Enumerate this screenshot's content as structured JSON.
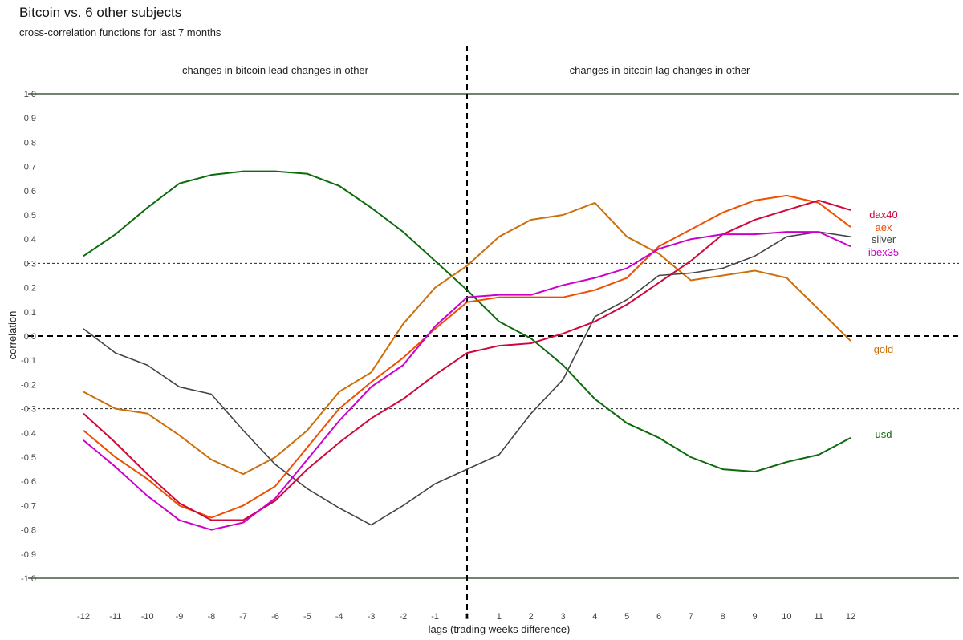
{
  "chart_data": {
    "type": "line",
    "title": "Bitcoin vs. 6 other subjects",
    "subtitle": "cross-correlation functions for last 7 months",
    "xlabel": "lags (trading weeks difference)",
    "ylabel": "correlation",
    "xlim": [
      -12,
      12
    ],
    "ylim": [
      -1.0,
      1.0
    ],
    "x": [
      -12,
      -11,
      -10,
      -9,
      -8,
      -7,
      -6,
      -5,
      -4,
      -3,
      -2,
      -1,
      0,
      1,
      2,
      3,
      4,
      5,
      6,
      7,
      8,
      9,
      10,
      11,
      12
    ],
    "x_ticks": [
      "-12",
      "-11",
      "-10",
      "-9",
      "-8",
      "-7",
      "-6",
      "-5",
      "-4",
      "-3",
      "-2",
      "-1",
      "0",
      "1",
      "2",
      "3",
      "4",
      "5",
      "6",
      "7",
      "8",
      "9",
      "10",
      "11",
      "12"
    ],
    "y_ticks": [
      "1.0",
      "0.9",
      "0.8",
      "0.7",
      "0.6",
      "0.5",
      "0.4",
      "0.3",
      "0.2",
      "0.1",
      "0.0",
      "-0.1",
      "-0.2",
      "-0.3",
      "-0.4",
      "-0.5",
      "-0.6",
      "-0.7",
      "-0.8",
      "-0.9",
      "-1.0"
    ],
    "grid": false,
    "reference_lines": [
      {
        "y": 1.0,
        "style": "solid"
      },
      {
        "y": -1.0,
        "style": "solid"
      },
      {
        "y": 0.3,
        "style": "dotted"
      },
      {
        "y": -0.3,
        "style": "dotted"
      },
      {
        "y": 0.0,
        "style": "dashed"
      },
      {
        "x": 0,
        "style": "dashed"
      }
    ],
    "annotations": [
      {
        "text": "changes in bitcoin lead changes in other",
        "side": "left"
      },
      {
        "text": "changes in bitcoin lag changes in other",
        "side": "right"
      }
    ],
    "legend": "direct labels at right end of lines",
    "series": [
      {
        "name": "usd",
        "color": "#0d6a0d",
        "values": [
          0.33,
          0.42,
          0.53,
          0.63,
          0.665,
          0.68,
          0.68,
          0.67,
          0.62,
          0.53,
          0.43,
          0.31,
          0.19,
          0.06,
          -0.01,
          -0.12,
          -0.26,
          -0.36,
          -0.42,
          -0.5,
          -0.55,
          -0.56,
          -0.52,
          -0.49,
          -0.42
        ]
      },
      {
        "name": "gold",
        "color": "#cc6f0a",
        "values": [
          -0.23,
          -0.3,
          -0.32,
          -0.41,
          -0.51,
          -0.57,
          -0.5,
          -0.39,
          -0.23,
          -0.15,
          0.05,
          0.2,
          0.29,
          0.41,
          0.48,
          0.5,
          0.55,
          0.41,
          0.34,
          0.23,
          0.25,
          0.27,
          0.24,
          0.11,
          -0.02
        ]
      },
      {
        "name": "silver",
        "color": "#444444",
        "values": [
          0.03,
          -0.07,
          -0.12,
          -0.21,
          -0.24,
          -0.39,
          -0.53,
          -0.63,
          -0.71,
          -0.78,
          -0.7,
          -0.61,
          -0.55,
          -0.49,
          -0.32,
          -0.18,
          0.08,
          0.15,
          0.25,
          0.26,
          0.28,
          0.33,
          0.41,
          0.43,
          0.41
        ]
      },
      {
        "name": "aex",
        "color": "#ee4f00",
        "values": [
          -0.39,
          -0.5,
          -0.59,
          -0.7,
          -0.75,
          -0.7,
          -0.62,
          -0.46,
          -0.3,
          -0.19,
          -0.09,
          0.03,
          0.14,
          0.16,
          0.16,
          0.16,
          0.19,
          0.24,
          0.37,
          0.44,
          0.51,
          0.56,
          0.58,
          0.55,
          0.45
        ]
      },
      {
        "name": "dax40",
        "color": "#d0073a",
        "values": [
          -0.32,
          -0.44,
          -0.57,
          -0.69,
          -0.76,
          -0.76,
          -0.68,
          -0.55,
          -0.44,
          -0.34,
          -0.26,
          -0.16,
          -0.07,
          -0.04,
          -0.03,
          0.01,
          0.06,
          0.13,
          0.22,
          0.31,
          0.42,
          0.48,
          0.52,
          0.56,
          0.52
        ]
      },
      {
        "name": "ibex35",
        "color": "#cc00cc",
        "values": [
          -0.43,
          -0.54,
          -0.66,
          -0.76,
          -0.8,
          -0.77,
          -0.67,
          -0.51,
          -0.35,
          -0.21,
          -0.12,
          0.04,
          0.16,
          0.17,
          0.17,
          0.21,
          0.24,
          0.28,
          0.36,
          0.4,
          0.42,
          0.42,
          0.43,
          0.43,
          0.37
        ]
      }
    ]
  }
}
